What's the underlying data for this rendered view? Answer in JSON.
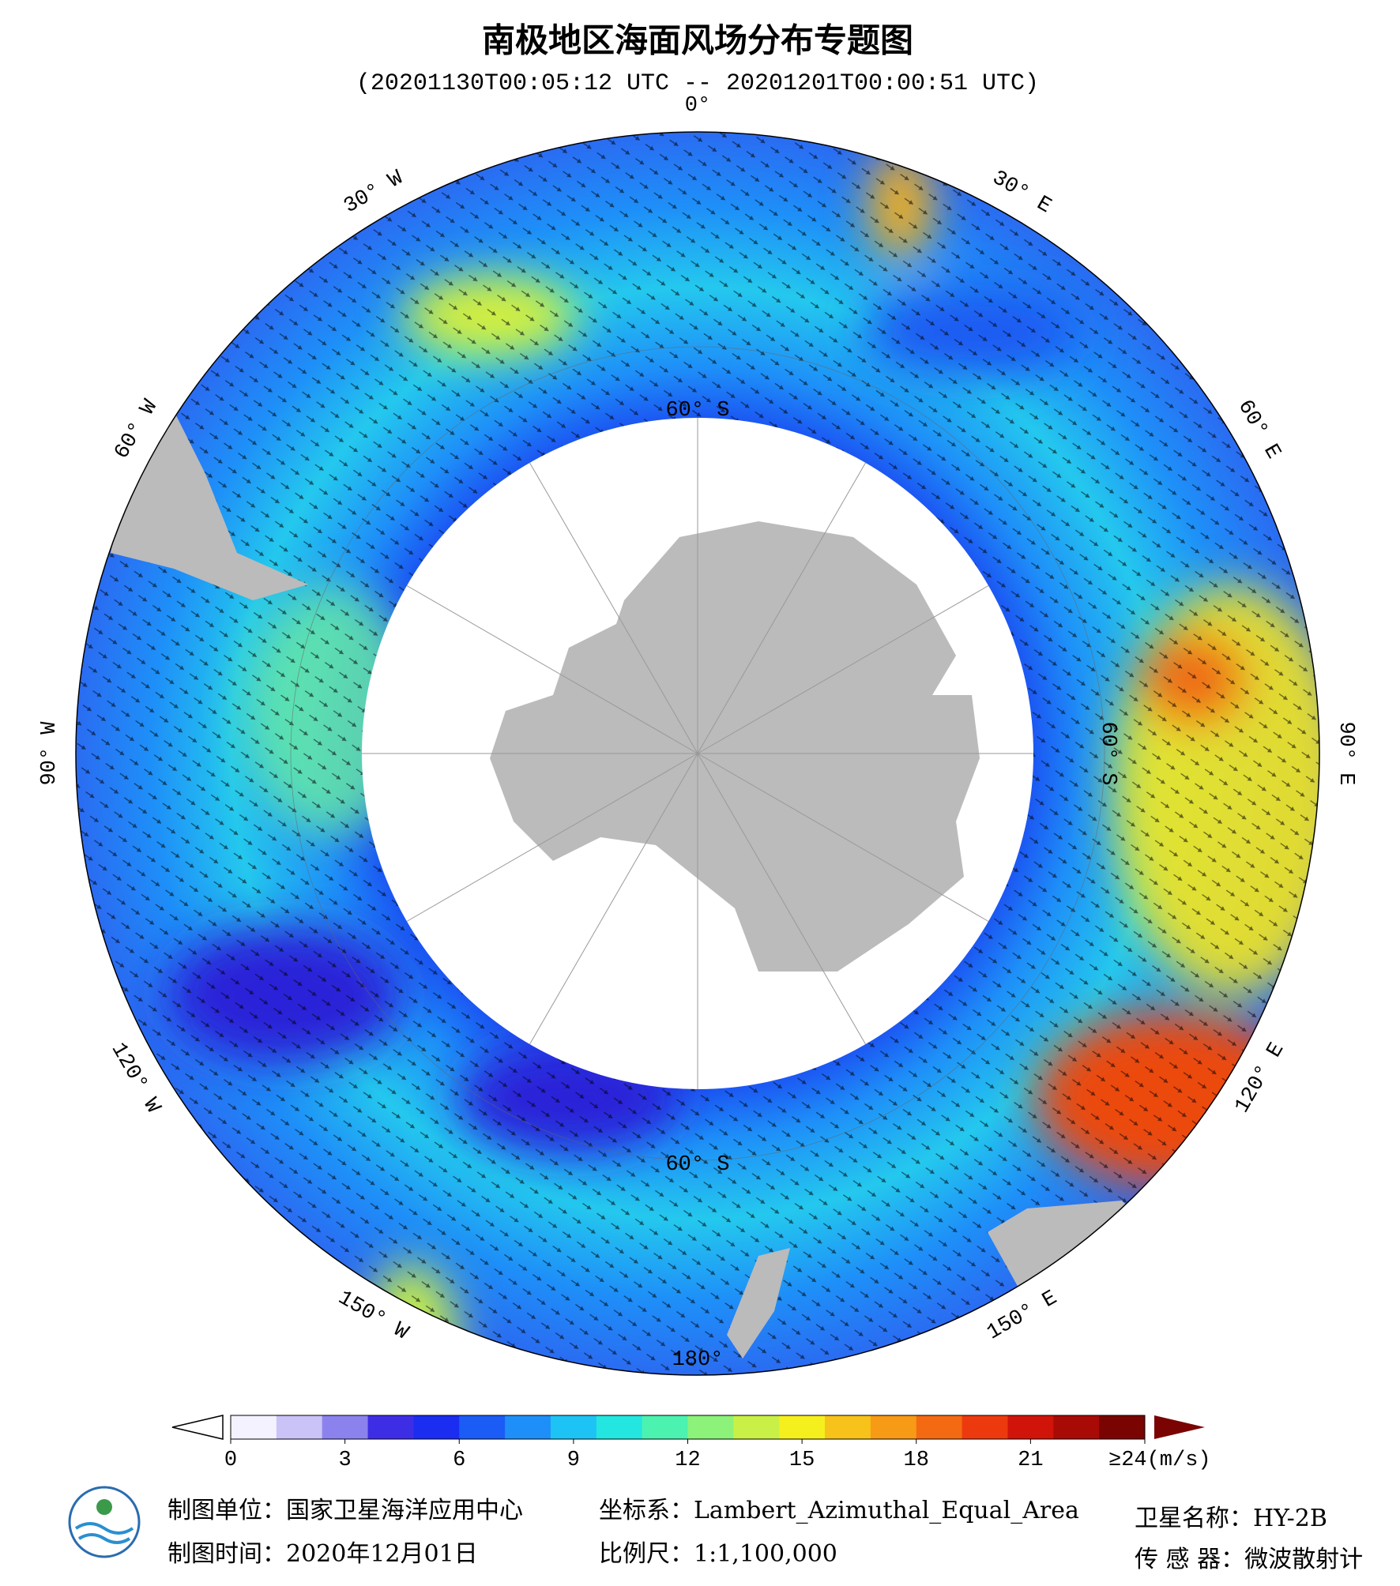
{
  "header": {
    "title": "南极地区海面风场分布专题图",
    "subtitle": "(20201130T00:05:12 UTC -- 20201201T00:00:51 UTC)"
  },
  "map": {
    "longitude_labels": [
      {
        "angle": 0,
        "label": "0°"
      },
      {
        "angle": 30,
        "label": "30° E"
      },
      {
        "angle": 60,
        "label": "60° E"
      },
      {
        "angle": 90,
        "label": "90° E"
      },
      {
        "angle": 120,
        "label": "120° E"
      },
      {
        "angle": 150,
        "label": "150° E"
      },
      {
        "angle": 180,
        "label": "180°"
      },
      {
        "angle": -150,
        "label": "150° W"
      },
      {
        "angle": -120,
        "label": "120° W"
      },
      {
        "angle": -90,
        "label": "90° W"
      },
      {
        "angle": -60,
        "label": "60° W"
      },
      {
        "angle": -30,
        "label": "30° W"
      }
    ],
    "latitude_labels": [
      {
        "angle": 0,
        "label": "60° S"
      },
      {
        "angle": 90,
        "label": "60° S"
      },
      {
        "angle": 180,
        "label": "60° S"
      }
    ]
  },
  "colorbar": {
    "lim": [
      0,
      24
    ],
    "ticks": [
      0,
      3,
      6,
      9,
      12,
      15,
      18,
      21,
      {
        "value": 24,
        "label": "≥24(m/s)"
      }
    ],
    "colors": [
      "#f4f2ff",
      "#c9c3f7",
      "#8c82ee",
      "#3d2ee6",
      "#1a2df0",
      "#1a5cf5",
      "#1e8ff8",
      "#1ec3f5",
      "#24e6e0",
      "#4cf2b0",
      "#8cf27a",
      "#c8f046",
      "#f5ef1e",
      "#f7c21a",
      "#f79a16",
      "#f46a12",
      "#ec3a0e",
      "#d0140a",
      "#a80a06",
      "#7a0402"
    ]
  },
  "footer": {
    "unit": "制图单位：国家卫星海洋应用中心",
    "date": "制图时间：2020年12月01日",
    "crs": "坐标系：Lambert_Azimuthal_Equal_Area",
    "scale": "比例尺：1:1,100,000",
    "satellite": "卫星名称：HY-2B",
    "sensor": "传 感 器：微波散射计"
  }
}
